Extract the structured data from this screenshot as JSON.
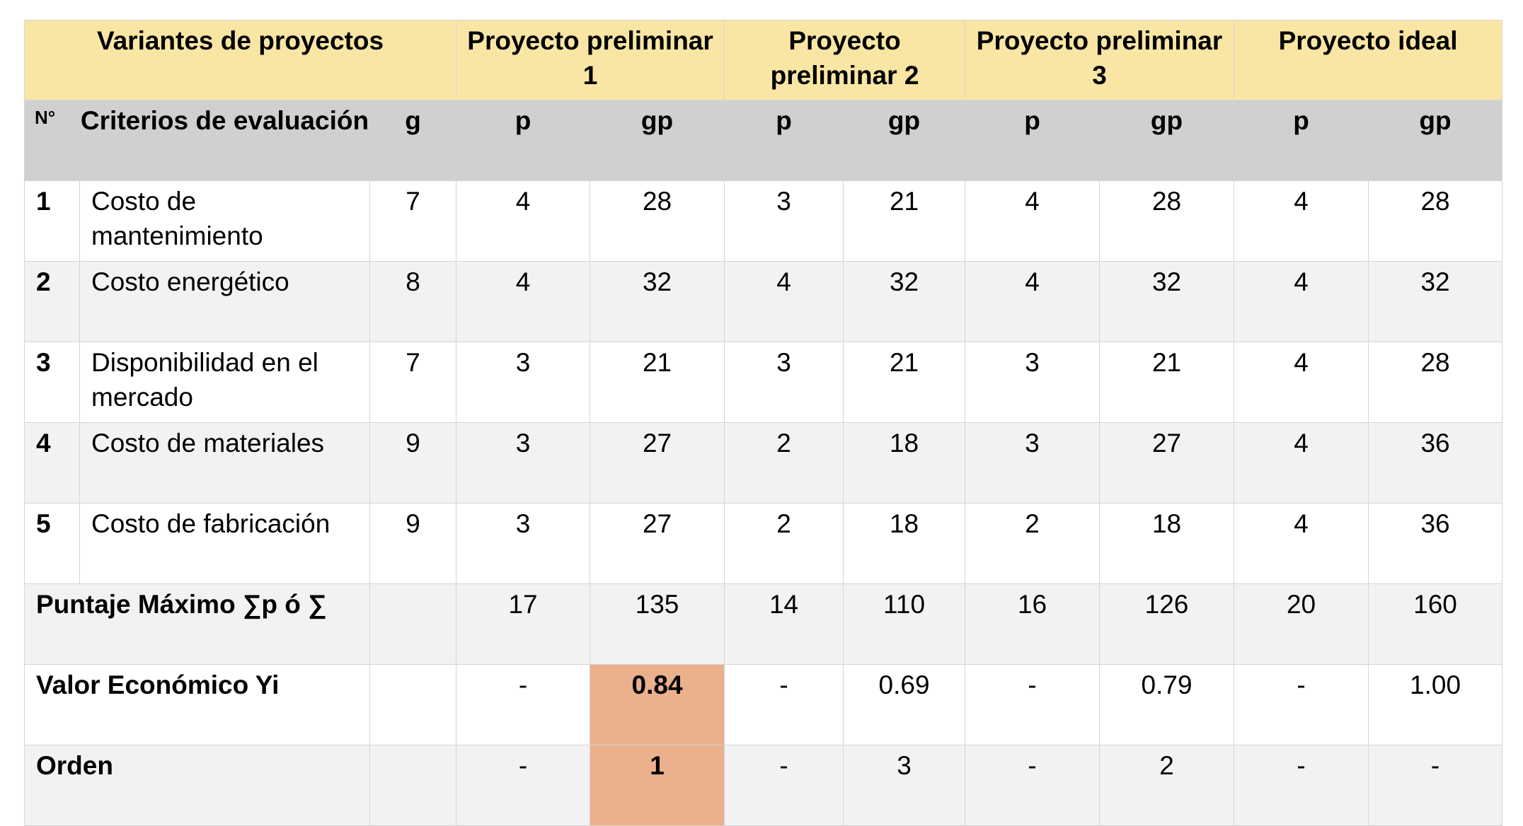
{
  "table": {
    "header": {
      "variants_label": "Variantes de proyectos",
      "projects": [
        "Proyecto preliminar 1",
        "Proyecto preliminar 2",
        "Proyecto preliminar 3",
        "Proyecto ideal"
      ]
    },
    "subheader": {
      "no": "N°",
      "criteria": "Criterios de evaluación",
      "g": "g",
      "p": "p",
      "gp": "gp"
    },
    "rows": [
      {
        "n": "1",
        "criterion": "Costo de mantenimiento",
        "g": "7",
        "values": [
          "4",
          "28",
          "3",
          "21",
          "4",
          "28",
          "4",
          "28"
        ]
      },
      {
        "n": "2",
        "criterion": "Costo energético",
        "g": "8",
        "values": [
          "4",
          "32",
          "4",
          "32",
          "4",
          "32",
          "4",
          "32"
        ]
      },
      {
        "n": "3",
        "criterion": "Disponibilidad en el mercado",
        "g": "7",
        "values": [
          "3",
          "21",
          "3",
          "21",
          "3",
          "21",
          "4",
          "28"
        ]
      },
      {
        "n": "4",
        "criterion": "Costo de materiales",
        "g": "9",
        "values": [
          "3",
          "27",
          "2",
          "18",
          "3",
          "27",
          "4",
          "36"
        ]
      },
      {
        "n": "5",
        "criterion": "Costo de fabricación",
        "g": "9",
        "values": [
          "3",
          "27",
          "2",
          "18",
          "2",
          "18",
          "4",
          "36"
        ]
      }
    ],
    "summary": [
      {
        "label": "Puntaje Máximo  ∑p ó ∑",
        "g": "",
        "values": [
          "17",
          "135",
          "14",
          "110",
          "16",
          "126",
          "20",
          "160"
        ]
      },
      {
        "label": "Valor Económico Yi",
        "g": "",
        "values": [
          "-",
          "0.84",
          "-",
          "0.69",
          "-",
          "0.79",
          "-",
          "1.00"
        ]
      },
      {
        "label": "Orden",
        "g": "",
        "values": [
          "-",
          "1",
          "-",
          "3",
          "-",
          "2",
          "-",
          "-"
        ]
      }
    ]
  },
  "colors": {
    "header_background": "#fae6a4",
    "subheader_background": "#d1d0d1",
    "shaded_row": "#f2f2f2",
    "highlight": "#ebb08c",
    "border": "#d4d4d4"
  }
}
